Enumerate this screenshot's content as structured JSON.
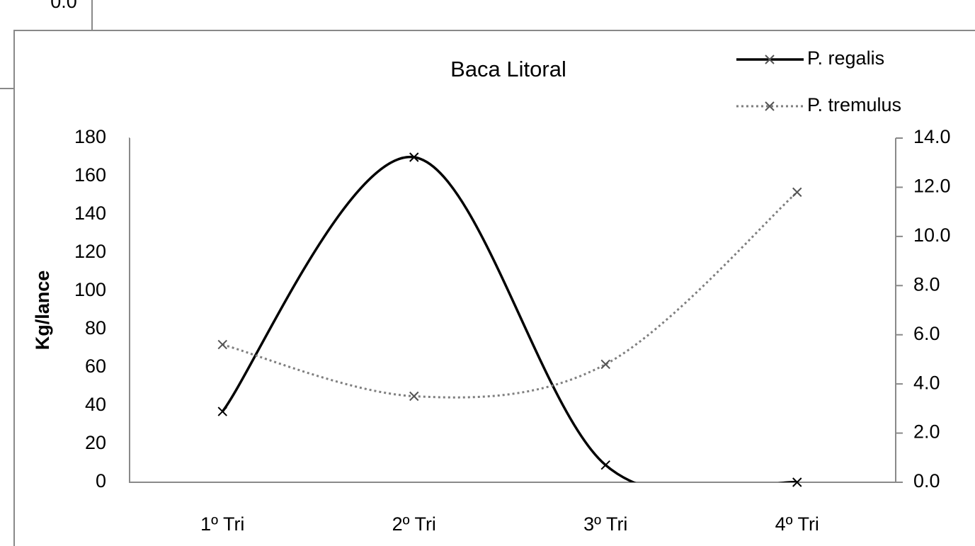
{
  "partial_text": "0.0",
  "chart_data": {
    "type": "line",
    "title": "Baca Litoral",
    "ylabel": "Kg/lance",
    "categories": [
      "1º Tri",
      "2º Tri",
      "3º Tri",
      "4º Tri"
    ],
    "series": [
      {
        "name": "P. regalis",
        "color": "#000000",
        "style": "solid",
        "values": [
          37,
          170,
          9,
          0
        ]
      },
      {
        "name": "P. tremulus",
        "color": "#7f7f7f",
        "style": "dotted",
        "axis": "y2",
        "values": [
          5.6,
          3.5,
          4.8,
          11.8
        ]
      }
    ],
    "smooth": true,
    "marker": "x",
    "legend": "top-right",
    "ylim": [
      0,
      180
    ],
    "yticks": [
      0,
      20,
      40,
      60,
      80,
      100,
      120,
      140,
      160,
      180
    ],
    "y2lim": [
      0,
      14
    ],
    "y2ticks": [
      {
        "value": 0,
        "label": "0.0"
      },
      {
        "value": 2,
        "label": "2.0"
      },
      {
        "value": 4,
        "label": "4.0"
      },
      {
        "value": 6,
        "label": "6.0"
      },
      {
        "value": 8,
        "label": "8.0"
      },
      {
        "value": 10,
        "label": "10.0"
      },
      {
        "value": 12,
        "label": "12.0"
      },
      {
        "value": 14,
        "label": "14.0"
      }
    ]
  }
}
